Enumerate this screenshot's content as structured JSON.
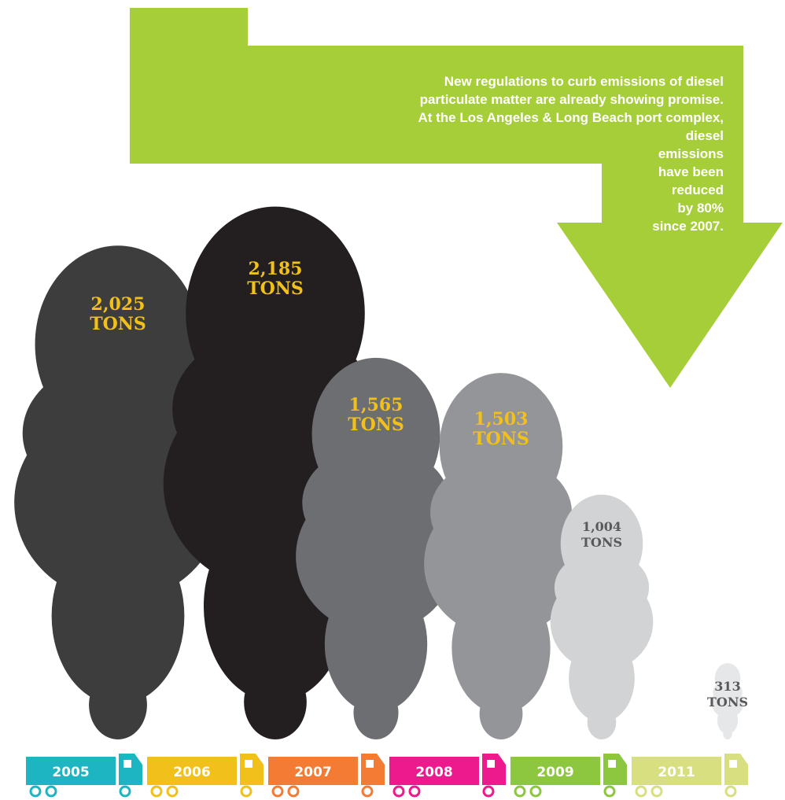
{
  "chart_data": {
    "type": "smoke",
    "annotation": [
      "New regulations to curb emissions of diesel",
      "particulate matter are already showing promise.",
      "At the Los Angeles & Long Beach port complex,",
      "diesel",
      "emissions",
      "have been",
      "reduced",
      "by 80%",
      "since 2007."
    ],
    "annotation_color": "#a6ce39",
    "categories": [
      "2005",
      "2006",
      "2007",
      "2008",
      "2009",
      "2011"
    ],
    "values": [
      2025,
      2185,
      1565,
      1503,
      1004,
      313
    ],
    "value_labels": [
      "2,025 TONS",
      "2,185 TONS",
      "1,565 TONS",
      "1,503 TONS",
      "1,004 TONS",
      "313 TONS"
    ],
    "cloud_colors": [
      "#3d3d3e",
      "#231f20",
      "#6d6e71",
      "#939598",
      "#d1d3d4",
      "#e6e7e8"
    ],
    "label_colors": [
      "#f1c01b",
      "#f1c01b",
      "#f1c01b",
      "#f1c01b",
      "#58595b",
      "#58595b"
    ],
    "truck_colors": [
      "#1db5c1",
      "#f1c01b",
      "#f47b34",
      "#ec1a8c",
      "#8dc63f",
      "#d7df80"
    ]
  }
}
